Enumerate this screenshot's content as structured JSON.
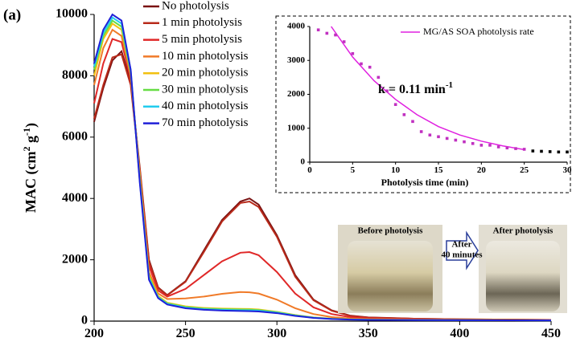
{
  "panel_label": "(a)",
  "chart_data": [
    {
      "type": "line",
      "y_label_parts": [
        "MAC (cm",
        "2",
        " g",
        "-1",
        ")"
      ],
      "x": [
        200,
        205,
        210,
        215,
        220,
        225,
        230,
        235,
        240,
        250,
        260,
        270,
        280,
        285,
        290,
        300,
        310,
        320,
        330,
        340,
        350,
        375,
        400,
        450
      ],
      "xlim": [
        200,
        450
      ],
      "xticks": [
        200,
        250,
        300,
        350,
        400,
        450
      ],
      "ylim": [
        0,
        10000
      ],
      "yticks": [
        0,
        2000,
        4000,
        6000,
        8000,
        10000
      ],
      "series": [
        {
          "name": "No photolysis",
          "color": "#7a1212",
          "values": [
            6500,
            7600,
            8500,
            8800,
            7800,
            5000,
            2000,
            1100,
            850,
            1300,
            2300,
            3300,
            3900,
            4000,
            3800,
            2800,
            1500,
            700,
            350,
            180,
            120,
            80,
            60,
            40
          ]
        },
        {
          "name": "1 min photolysis",
          "color": "#b82a1a",
          "values": [
            6600,
            7700,
            8600,
            8700,
            7700,
            4900,
            1950,
            1080,
            840,
            1280,
            2250,
            3250,
            3850,
            3900,
            3720,
            2750,
            1450,
            680,
            340,
            175,
            115,
            78,
            58,
            40
          ]
        },
        {
          "name": "5 min photolysis",
          "color": "#e02828",
          "values": [
            7100,
            8400,
            9200,
            9100,
            7900,
            4900,
            1800,
            1000,
            800,
            1050,
            1500,
            1950,
            2230,
            2250,
            2150,
            1600,
            900,
            450,
            230,
            130,
            90,
            65,
            50,
            35
          ]
        },
        {
          "name": "10 min photolysis",
          "color": "#f07a28",
          "values": [
            7700,
            8900,
            9500,
            9300,
            8000,
            4800,
            1600,
            900,
            720,
            740,
            800,
            890,
            950,
            940,
            900,
            700,
            420,
            230,
            130,
            85,
            65,
            50,
            40,
            30
          ]
        },
        {
          "name": "20 min photolysis",
          "color": "#f2c010",
          "values": [
            8000,
            9200,
            9700,
            9500,
            8100,
            4700,
            1500,
            820,
            600,
            480,
            430,
            410,
            400,
            395,
            380,
            300,
            200,
            120,
            80,
            60,
            50,
            40,
            35,
            25
          ]
        },
        {
          "name": "30 min photolysis",
          "color": "#66dd44",
          "values": [
            8200,
            9300,
            9800,
            9600,
            8100,
            4600,
            1450,
            790,
            580,
            460,
            410,
            390,
            380,
            375,
            360,
            290,
            190,
            115,
            75,
            55,
            45,
            38,
            33,
            25
          ]
        },
        {
          "name": "40 min photolysis",
          "color": "#22ccee",
          "values": [
            8300,
            9400,
            9900,
            9700,
            8200,
            4550,
            1400,
            770,
            560,
            440,
            390,
            370,
            355,
            350,
            340,
            275,
            180,
            110,
            72,
            52,
            42,
            36,
            31,
            24
          ]
        },
        {
          "name": "70 min photolysis",
          "color": "#2020d8",
          "values": [
            8400,
            9500,
            10000,
            9800,
            8200,
            4500,
            1350,
            750,
            540,
            420,
            370,
            345,
            330,
            325,
            315,
            260,
            170,
            105,
            70,
            50,
            40,
            34,
            30,
            22
          ]
        }
      ]
    },
    {
      "type": "scatter",
      "x_label": "Photolysis time (min)",
      "annotation_parts": [
        "k = 0.11 min",
        "-1"
      ],
      "xlim": [
        0,
        30
      ],
      "xticks": [
        0,
        5,
        10,
        15,
        20,
        25,
        30
      ],
      "ylim": [
        0,
        4000
      ],
      "yticks": [
        0,
        1000,
        2000,
        3000,
        4000
      ],
      "series": [
        {
          "name": "MG/AS SOA photolysis rate",
          "type": "line",
          "color": "#e020e0",
          "x": [
            2.5,
            5,
            7.5,
            10,
            12.5,
            15,
            17.5,
            20,
            22.5,
            25
          ],
          "values": [
            4000,
            3100,
            2400,
            1850,
            1400,
            1050,
            800,
            620,
            480,
            370
          ]
        },
        {
          "type": "scatter",
          "color": "#c030c0",
          "x": [
            1,
            2,
            3,
            4,
            5,
            6,
            7,
            8,
            9,
            10,
            11,
            12,
            13,
            14,
            15,
            16,
            17,
            18,
            19,
            20,
            21,
            22,
            23,
            24,
            25
          ],
          "values": [
            3900,
            3800,
            3750,
            3550,
            3200,
            2900,
            2800,
            2500,
            2100,
            1700,
            1400,
            1200,
            900,
            800,
            750,
            700,
            650,
            600,
            550,
            500,
            500,
            450,
            420,
            400,
            380
          ]
        },
        {
          "type": "scatter",
          "color": "#000000",
          "x": [
            26,
            27,
            28,
            29,
            30
          ],
          "values": [
            330,
            320,
            310,
            300,
            300
          ]
        }
      ]
    }
  ],
  "photos": {
    "before": "Before photolysis",
    "arrow_top": "After",
    "arrow_bottom": "40 minutes",
    "after": "After photolysis"
  }
}
